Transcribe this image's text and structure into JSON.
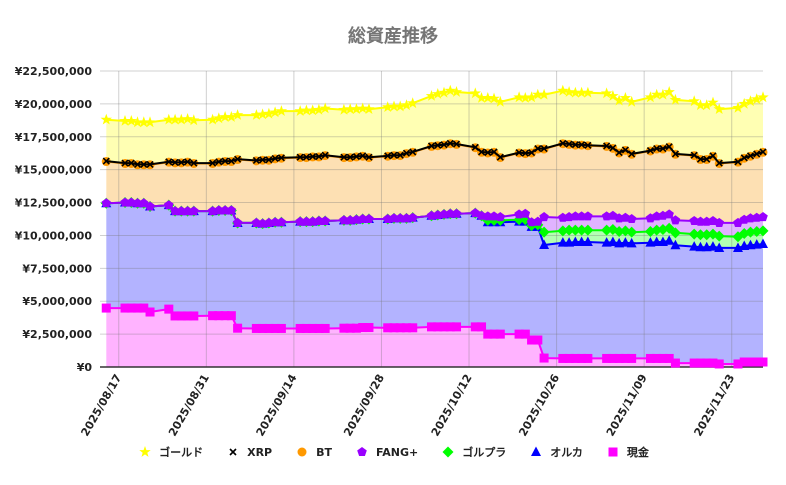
{
  "chart_data": {
    "type": "area",
    "stacked": true,
    "title": "総資産推移",
    "xlabel": "",
    "ylabel": "",
    "ylim": [
      0,
      22500000
    ],
    "xlim": [
      "2025/08/14",
      "2025/11/28"
    ],
    "grid": true,
    "legend_position": "bottom",
    "y_ticks": [
      "¥0",
      "¥2,500,000",
      "¥5,000,000",
      "¥7,500,000",
      "¥10,000,000",
      "¥12,500,000",
      "¥15,000,000",
      "¥17,500,000",
      "¥20,000,000",
      "¥22,500,000"
    ],
    "y_tick_values": [
      0,
      2500000,
      5000000,
      7500000,
      10000000,
      12500000,
      15000000,
      17500000,
      20000000,
      22500000
    ],
    "x_ticks": [
      "2025/08/17",
      "2025/08/31",
      "2025/09/14",
      "2025/09/28",
      "2025/10/12",
      "2025/10/26",
      "2025/11/09",
      "2025/11/23"
    ],
    "x": [
      "2025/08/15",
      "2025/08/18",
      "2025/08/19",
      "2025/08/20",
      "2025/08/21",
      "2025/08/22",
      "2025/08/25",
      "2025/08/26",
      "2025/08/27",
      "2025/08/28",
      "2025/08/29",
      "2025/09/01",
      "2025/09/02",
      "2025/09/03",
      "2025/09/04",
      "2025/09/05",
      "2025/09/08",
      "2025/09/09",
      "2025/09/10",
      "2025/09/11",
      "2025/09/12",
      "2025/09/15",
      "2025/09/16",
      "2025/09/17",
      "2025/09/18",
      "2025/09/19",
      "2025/09/22",
      "2025/09/23",
      "2025/09/24",
      "2025/09/25",
      "2025/09/26",
      "2025/09/29",
      "2025/09/30",
      "2025/10/01",
      "2025/10/02",
      "2025/10/03",
      "2025/10/06",
      "2025/10/07",
      "2025/10/08",
      "2025/10/09",
      "2025/10/10",
      "2025/10/13",
      "2025/10/14",
      "2025/10/15",
      "2025/10/16",
      "2025/10/17",
      "2025/10/20",
      "2025/10/21",
      "2025/10/22",
      "2025/10/23",
      "2025/10/24",
      "2025/10/27",
      "2025/10/28",
      "2025/10/29",
      "2025/10/30",
      "2025/10/31",
      "2025/11/03",
      "2025/11/04",
      "2025/11/05",
      "2025/11/06",
      "2025/11/07",
      "2025/11/10",
      "2025/11/11",
      "2025/11/12",
      "2025/11/13",
      "2025/11/14",
      "2025/11/17",
      "2025/11/18",
      "2025/11/19",
      "2025/11/20",
      "2025/11/21",
      "2025/11/24",
      "2025/11/25",
      "2025/11/26",
      "2025/11/27",
      "2025/11/28"
    ],
    "series": [
      {
        "name": "ゴールド",
        "marker": "star",
        "color": "#ffff00",
        "fill": "#ffffb3",
        "values": [
          3150000.0,
          3200000.0,
          3200000.0,
          3200000.0,
          3200000.0,
          3200000.0,
          3200000.0,
          3250000.0,
          3250000.0,
          3250000.0,
          3250000.0,
          3300000.0,
          3300000.0,
          3350000.0,
          3350000.0,
          3350000.0,
          3450000.0,
          3450000.0,
          3500000.0,
          3500000.0,
          3550000.0,
          3500000.0,
          3550000.0,
          3500000.0,
          3550000.0,
          3550000.0,
          3600000.0,
          3650000.0,
          3600000.0,
          3600000.0,
          3650000.0,
          3700000.0,
          3700000.0,
          3700000.0,
          3650000.0,
          3700000.0,
          3800000.0,
          3900000.0,
          3950000.0,
          4000000.0,
          3950000.0,
          4100000.0,
          4100000.0,
          4150000.0,
          4050000.0,
          4200000.0,
          4200000.0,
          4200000.0,
          4200000.0,
          4100000.0,
          4100000.0,
          4000000.0,
          3950000.0,
          3950000.0,
          3950000.0,
          4000000.0,
          4000000.0,
          3950000.0,
          3950000.0,
          3950000.0,
          3950000.0,
          4050000.0,
          4100000.0,
          4100000.0,
          4150000.0,
          4100000.0,
          4100000.0,
          4100000.0,
          4100000.0,
          4050000.0,
          4100000.0,
          4100000.0,
          4100000.0,
          4150000.0,
          4150000.0,
          4150000.0
        ]
      },
      {
        "name": "XRP",
        "marker": "x",
        "color": "#000000",
        "fill": "#bbbbbb",
        "values": [
          30000.0,
          30000.0,
          30000.0,
          30000.0,
          30000.0,
          30000.0,
          30000.0,
          30000.0,
          30000.0,
          30000.0,
          30000.0,
          30000.0,
          30000.0,
          30000.0,
          30000.0,
          30000.0,
          30000.0,
          30000.0,
          30000.0,
          30000.0,
          30000.0,
          30000.0,
          30000.0,
          30000.0,
          30000.0,
          30000.0,
          30000.0,
          30000.0,
          30000.0,
          30000.0,
          30000.0,
          30000.0,
          30000.0,
          30000.0,
          30000.0,
          30000.0,
          30000.0,
          30000.0,
          30000.0,
          30000.0,
          30000.0,
          30000.0,
          30000.0,
          30000.0,
          30000.0,
          30000.0,
          30000.0,
          30000.0,
          30000.0,
          30000.0,
          30000.0,
          30000.0,
          30000.0,
          30000.0,
          30000.0,
          30000.0,
          30000.0,
          30000.0,
          30000.0,
          30000.0,
          30000.0,
          30000.0,
          30000.0,
          30000.0,
          30000.0,
          30000.0,
          30000.0,
          30000.0,
          30000.0,
          30000.0,
          30000.0,
          30000.0,
          30000.0,
          30000.0,
          30000.0,
          30000.0
        ]
      },
      {
        "name": "BT",
        "marker": "circle",
        "color": "#ff9900",
        "fill": "#fde0b3",
        "values": [
          3170000.0,
          2970000.0,
          2970000.0,
          2920000.0,
          2920000.0,
          3170000.0,
          3270000.0,
          3670000.0,
          3670000.0,
          3720000.0,
          3620000.0,
          3620000.0,
          3670000.0,
          3720000.0,
          3720000.0,
          4820000.0,
          4720000.0,
          4820000.0,
          4770000.0,
          4820000.0,
          4870000.0,
          4870000.0,
          4870000.0,
          4920000.0,
          4870000.0,
          4970000.0,
          4770000.0,
          4770000.0,
          4770000.0,
          4770000.0,
          4670000.0,
          4770000.0,
          4770000.0,
          4770000.0,
          4920000.0,
          4970000.0,
          5270000.0,
          5270000.0,
          5270000.0,
          5320000.0,
          5270000.0,
          4970000.0,
          4820000.0,
          4820000.0,
          4870000.0,
          4520000.0,
          4670000.0,
          4570000.0,
          5270000.0,
          5520000.0,
          5170000.0,
          5620000.0,
          5520000.0,
          5420000.0,
          5420000.0,
          5370000.0,
          5320000.0,
          5120000.0,
          4970000.0,
          5120000.0,
          4920000.0,
          5120000.0,
          5120000.0,
          5070000.0,
          5120000.0,
          5020000.0,
          4970000.0,
          4720000.0,
          4720000.0,
          4920000.0,
          4520000.0,
          4620000.0,
          4670000.0,
          4720000.0,
          4820000.0,
          4920000.0
        ]
      },
      {
        "name": "FANG+",
        "marker": "pentagon",
        "color": "#9900ff",
        "fill": "#e0b3ff",
        "values": [
          0,
          0,
          0,
          0,
          0,
          0,
          0,
          0,
          0,
          0,
          0,
          0,
          0,
          0,
          0,
          0,
          0,
          0,
          0,
          0,
          0,
          0,
          0,
          0,
          0,
          0,
          0,
          0,
          0,
          0,
          0,
          0,
          0,
          0,
          0,
          0,
          0,
          0,
          0,
          0,
          0,
          0,
          0,
          300000.0,
          300000.0,
          250000.0,
          400000.0,
          450000.0,
          250000.0,
          250000.0,
          1150000.0,
          1000000.0,
          1000000.0,
          1050000.0,
          1050000.0,
          1050000.0,
          1050000.0,
          1050000.0,
          1000000.0,
          1000000.0,
          1000000.0,
          1000000.0,
          1050000.0,
          1050000.0,
          1050000.0,
          950000.0,
          1000000.0,
          1000000.0,
          1000000.0,
          1000000.0,
          1000000.0,
          1050000.0,
          1050000.0,
          1050000.0,
          1050000.0,
          1050000.0
        ]
      },
      {
        "name": "ゴルプラ",
        "marker": "diamond",
        "color": "#00ff00",
        "fill": "#b3ffb3",
        "values": [
          0,
          0,
          0,
          0,
          0,
          0,
          0,
          0,
          0,
          0,
          0,
          0,
          0,
          0,
          0,
          0,
          0,
          0,
          0,
          0,
          0,
          0,
          0,
          0,
          0,
          0,
          0,
          0,
          0,
          0,
          0,
          0,
          0,
          0,
          0,
          0,
          0,
          0,
          0,
          0,
          0,
          0,
          0,
          150000.0,
          150000.0,
          150000.0,
          150000.0,
          150000.0,
          100000.0,
          150000.0,
          980000.0,
          900000.0,
          950000.0,
          900000.0,
          900000.0,
          900000.0,
          950000.0,
          950000.0,
          900000.0,
          900000.0,
          850000.0,
          850000.0,
          900000.0,
          950000.0,
          950000.0,
          950000.0,
          950000.0,
          950000.0,
          950000.0,
          950000.0,
          900000.0,
          850000.0,
          950000.0,
          1000000.0,
          1000000.0,
          1000000.0
        ]
      },
      {
        "name": "オルカ",
        "marker": "triangle",
        "color": "#0000ff",
        "fill": "#b3b3ff",
        "values": [
          7970000.0,
          8020000.0,
          8020000.0,
          7970000.0,
          7970000.0,
          8020000.0,
          7900000.0,
          7970000.0,
          7970000.0,
          7970000.0,
          7970000.0,
          7950000.0,
          8000000.0,
          8000000.0,
          8000000.0,
          8000000.0,
          8020000.0,
          7970000.0,
          8020000.0,
          8070000.0,
          8070000.0,
          8120000.0,
          8120000.0,
          8120000.0,
          8170000.0,
          8170000.0,
          8200000.0,
          8200000.0,
          8250000.0,
          8250000.0,
          8250000.0,
          8270000.0,
          8320000.0,
          8320000.0,
          8320000.0,
          8370000.0,
          8450000.0,
          8500000.0,
          8550000.0,
          8600000.0,
          8600000.0,
          8650000.0,
          8450000.0,
          8500000.0,
          8500000.0,
          8500000.0,
          8550000.0,
          8550000.0,
          8600000.0,
          8600000.0,
          8590000.0,
          8800000.0,
          8800000.0,
          8850000.0,
          8850000.0,
          8850000.0,
          8800000.0,
          8850000.0,
          8750000.0,
          8800000.0,
          8750000.0,
          8800000.0,
          8850000.0,
          8850000.0,
          8950000.0,
          8950000.0,
          8850000.0,
          8800000.0,
          8800000.0,
          8850000.0,
          8820000.0,
          8820000.0,
          8820000.0,
          8870000.0,
          8920000.0,
          8970000.0
        ]
      },
      {
        "name": "現金",
        "marker": "square",
        "color": "#ff00ff",
        "fill": "#ffb3ff",
        "values": [
          4480000.0,
          4480000.0,
          4480000.0,
          4480000.0,
          4480000.0,
          4180000.0,
          4400000.0,
          3880000.0,
          3880000.0,
          3880000.0,
          3880000.0,
          3900000.0,
          3900000.0,
          3900000.0,
          3900000.0,
          2950000.0,
          2930000.0,
          2930000.0,
          2930000.0,
          2930000.0,
          2930000.0,
          2930000.0,
          2930000.0,
          2930000.0,
          2930000.0,
          2930000.0,
          2950000.0,
          2950000.0,
          2950000.0,
          3000000.0,
          3000000.0,
          2980000.0,
          2980000.0,
          2980000.0,
          2980000.0,
          2980000.0,
          3050000.0,
          3050000.0,
          3050000.0,
          3050000.0,
          3050000.0,
          3050000.0,
          3050000.0,
          2500000.0,
          2500000.0,
          2500000.0,
          2500000.0,
          2500000.0,
          2050000.0,
          2050000.0,
          680000.0,
          650000.0,
          650000.0,
          650000.0,
          650000.0,
          650000.0,
          650000.0,
          650000.0,
          650000.0,
          650000.0,
          650000.0,
          650000.0,
          650000.0,
          650000.0,
          650000.0,
          300000.0,
          300000.0,
          300000.0,
          300000.0,
          300000.0,
          230000.0,
          230000.0,
          380000.0,
          380000.0,
          380000.0,
          380000.0
        ]
      }
    ]
  }
}
